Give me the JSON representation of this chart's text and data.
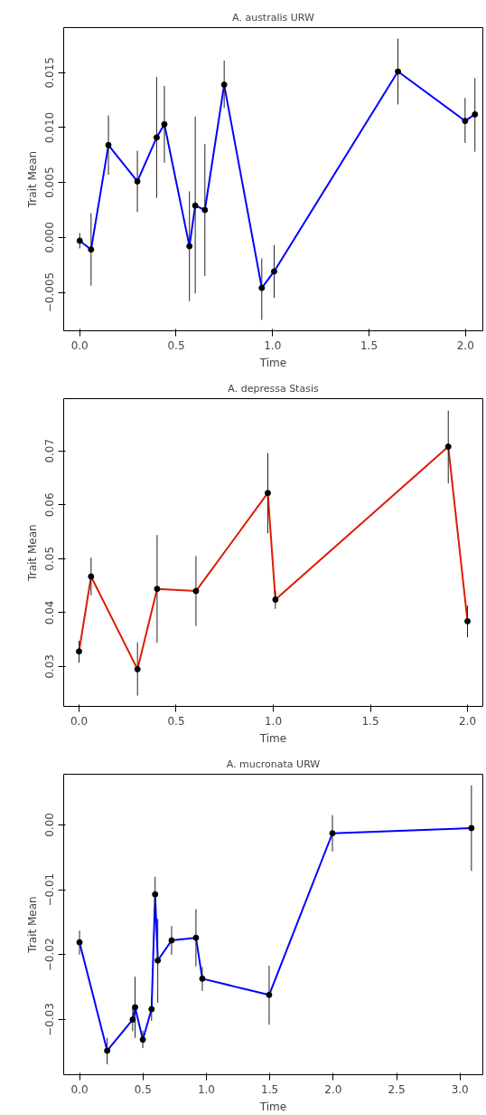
{
  "chart_data": [
    {
      "type": "line",
      "title": "A. australis URW",
      "xlabel": "Time",
      "ylabel": "Trait Mean",
      "marker": "circle",
      "grid": false,
      "x": [
        0,
        0.059,
        0.149,
        0.299,
        0.399,
        0.439,
        0.569,
        0.599,
        0.649,
        0.749,
        0.944,
        1.008,
        1.65,
        1.998,
        2.049
      ],
      "series": [
        {
          "color": "#0000ff",
          "values": [
            -0.0003,
            -0.0011,
            0.0084,
            0.0051,
            0.0091,
            0.0103,
            -0.0008,
            0.0029,
            0.0025,
            0.0139,
            -0.0046,
            -0.0031,
            0.0151,
            0.0106,
            0.0112
          ],
          "errors": [
            [
              -0.001,
              0.0004
            ],
            [
              -0.0044,
              0.0022
            ],
            [
              0.0057,
              0.0111
            ],
            [
              0.0023,
              0.0079
            ],
            [
              0.0036,
              0.0146
            ],
            [
              0.0068,
              0.0138
            ],
            [
              -0.0058,
              0.0042
            ],
            [
              -0.0051,
              0.011
            ],
            [
              -0.0035,
              0.0085
            ],
            [
              0.0118,
              0.0161
            ],
            [
              -0.0075,
              -0.0019
            ],
            [
              -0.0055,
              -0.0007
            ],
            [
              0.0121,
              0.0181
            ],
            [
              0.0086,
              0.0127
            ],
            [
              0.0078,
              0.0145
            ]
          ]
        }
      ],
      "xlim": [
        -0.083,
        2.09
      ],
      "ylim": [
        -0.0085,
        0.0191
      ],
      "xticks": [
        {
          "value": 0,
          "label": "0.0"
        },
        {
          "value": 0.5,
          "label": "0.5"
        },
        {
          "value": 1,
          "label": "1.0"
        },
        {
          "value": 1.5,
          "label": "1.5"
        },
        {
          "value": 2,
          "label": "2.0"
        }
      ],
      "yticks": [
        {
          "value": -0.005,
          "label": "−0.005"
        },
        {
          "value": 0,
          "label": "0.000"
        },
        {
          "value": 0.005,
          "label": "0.005"
        },
        {
          "value": 0.01,
          "label": "0.010"
        },
        {
          "value": 0.015,
          "label": "0.015"
        }
      ]
    },
    {
      "type": "line",
      "title": "A. depressa Stasis",
      "xlabel": "Time",
      "ylabel": "Trait Mean",
      "marker": "circle",
      "grid": false,
      "x": [
        0,
        0.062,
        0.301,
        0.402,
        0.602,
        0.972,
        1.011,
        1.901,
        2.0
      ],
      "series": [
        {
          "color": "#dd1c00",
          "values": [
            0.0328,
            0.0467,
            0.0295,
            0.0444,
            0.044,
            0.0622,
            0.0424,
            0.0708,
            0.0384
          ],
          "errors": [
            [
              0.0307,
              0.0348
            ],
            [
              0.0432,
              0.0502
            ],
            [
              0.0246,
              0.0345
            ],
            [
              0.0344,
              0.0544
            ],
            [
              0.0375,
              0.0505
            ],
            [
              0.0547,
              0.0696
            ],
            [
              0.0407,
              0.0441
            ],
            [
              0.064,
              0.0775
            ],
            [
              0.0354,
              0.0413
            ]
          ]
        }
      ],
      "xlim": [
        -0.079,
        2.079
      ],
      "ylim": [
        0.0226,
        0.0797
      ],
      "xticks": [
        {
          "value": 0,
          "label": "0.0"
        },
        {
          "value": 0.5,
          "label": "0.5"
        },
        {
          "value": 1,
          "label": "1.0"
        },
        {
          "value": 1.5,
          "label": "1.5"
        },
        {
          "value": 2,
          "label": "2.0"
        }
      ],
      "yticks": [
        0.03,
        0.04,
        0.05,
        0.06,
        0.07
      ]
    },
    {
      "type": "line",
      "title": "A. mucronata URW",
      "xlabel": "Time",
      "ylabel": "Trait Mean",
      "marker": "circle",
      "grid": false,
      "x": [
        0,
        0.218,
        0.419,
        0.438,
        0.499,
        0.568,
        0.596,
        0.617,
        0.726,
        0.918,
        0.968,
        1.495,
        1.994,
        3.09
      ],
      "series": [
        {
          "color": "#0000ff",
          "values": [
            -0.0181,
            -0.0348,
            -0.03,
            -0.0281,
            -0.0331,
            -0.0284,
            -0.0107,
            -0.0209,
            -0.0178,
            -0.0174,
            -0.0237,
            -0.0262,
            -0.0013,
            -0.0005
          ],
          "errors": [
            [
              -0.02,
              -0.0163
            ],
            [
              -0.0369,
              -0.0328
            ],
            [
              -0.0318,
              -0.0283
            ],
            [
              -0.0328,
              -0.0234
            ],
            [
              -0.0344,
              -0.0317
            ],
            [
              -0.0302,
              -0.0266
            ],
            [
              -0.0136,
              -0.008
            ],
            [
              -0.0274,
              -0.0145
            ],
            [
              -0.02,
              -0.0156
            ],
            [
              -0.0218,
              -0.013
            ],
            [
              -0.0256,
              -0.0219
            ],
            [
              -0.0308,
              -0.0217
            ],
            [
              -0.0041,
              0.0015
            ],
            [
              -0.0071,
              0.0061
            ]
          ]
        }
      ],
      "xlim": [
        -0.125,
        3.18
      ],
      "ylim": [
        -0.0385,
        0.0078
      ],
      "xticks": [
        {
          "value": 0,
          "label": "0.0"
        },
        {
          "value": 0.5,
          "label": "0.5"
        },
        {
          "value": 1,
          "label": "1.0"
        },
        {
          "value": 1.5,
          "label": "1.5"
        },
        {
          "value": 2,
          "label": "2.0"
        },
        {
          "value": 2.5,
          "label": "2.5"
        },
        {
          "value": 3,
          "label": "3.0"
        }
      ],
      "yticks": [
        {
          "value": -0.03,
          "label": "−0.03"
        },
        {
          "value": -0.02,
          "label": "−0.02"
        },
        {
          "value": -0.01,
          "label": "−0.01"
        },
        {
          "value": 0,
          "label": "0.00"
        }
      ]
    }
  ]
}
